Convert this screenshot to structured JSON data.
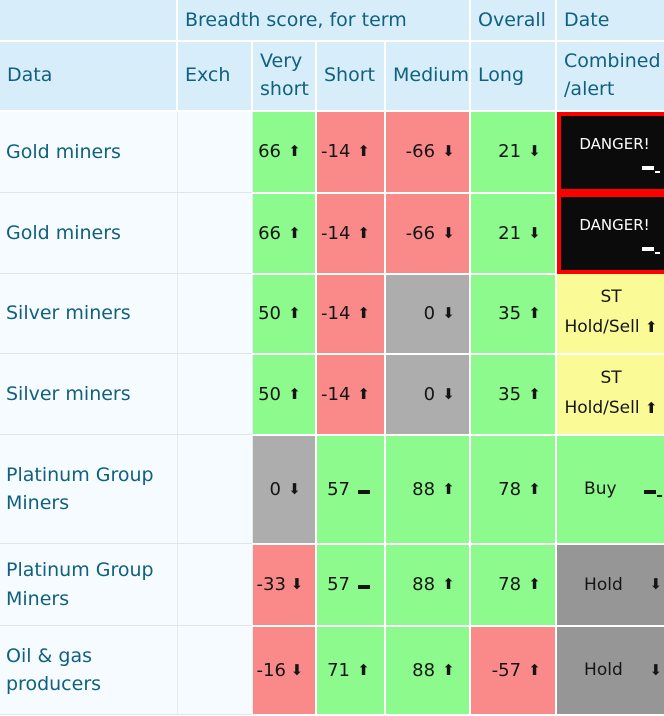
{
  "colors": {
    "header_bg": "#D7EEFA",
    "header_text": "#10607F",
    "row_bg": "#F5FBFE",
    "score_green": "#8DFA8D",
    "score_red": "#FA8A8A",
    "score_gray": "#ADADAD",
    "hold_gray": "#969696",
    "alert_yellow": "#FAFA96",
    "danger_bg": "#0B0B0B",
    "danger_border": "#FE0000",
    "danger_text": "#FFFFFF"
  },
  "header": {
    "group_label": "Breadth score, for term",
    "overall_label": "Overall",
    "date_label": "Date",
    "columns": {
      "data": "Data",
      "exch": "Exch",
      "very_short": "Very short",
      "short": "Short",
      "medium": "Medium",
      "long": "Long",
      "combined": "Combined /alert"
    }
  },
  "rows": [
    {
      "name": "Gold miners",
      "exch": "",
      "scores": [
        {
          "value": "66",
          "trend": "up",
          "tone": "green"
        },
        {
          "value": "-14",
          "trend": "up",
          "tone": "red"
        },
        {
          "value": "-66",
          "trend": "down",
          "tone": "red"
        },
        {
          "value": "21",
          "trend": "down",
          "tone": "green"
        }
      ],
      "combined": {
        "kind": "danger",
        "label": "DANGER!",
        "icon": "dashes",
        "tone": "danger"
      }
    },
    {
      "name": "Gold miners",
      "exch": "",
      "scores": [
        {
          "value": "66",
          "trend": "up",
          "tone": "green"
        },
        {
          "value": "-14",
          "trend": "up",
          "tone": "red"
        },
        {
          "value": "-66",
          "trend": "down",
          "tone": "red"
        },
        {
          "value": "21",
          "trend": "down",
          "tone": "green"
        }
      ],
      "combined": {
        "kind": "danger",
        "label": "DANGER!",
        "icon": "dashes",
        "tone": "danger"
      }
    },
    {
      "name": "Silver miners",
      "exch": "",
      "scores": [
        {
          "value": "50",
          "trend": "up",
          "tone": "green"
        },
        {
          "value": "-14",
          "trend": "up",
          "tone": "red"
        },
        {
          "value": "0",
          "trend": "down",
          "tone": "gray"
        },
        {
          "value": "35",
          "trend": "up",
          "tone": "green"
        }
      ],
      "combined": {
        "kind": "twoline",
        "line1": "ST",
        "line2": "Hold/Sell",
        "icon": "up",
        "tone": "yellow"
      }
    },
    {
      "name": "Silver miners",
      "exch": "",
      "scores": [
        {
          "value": "50",
          "trend": "up",
          "tone": "green"
        },
        {
          "value": "-14",
          "trend": "up",
          "tone": "red"
        },
        {
          "value": "0",
          "trend": "down",
          "tone": "gray"
        },
        {
          "value": "35",
          "trend": "up",
          "tone": "green"
        }
      ],
      "combined": {
        "kind": "twoline",
        "line1": "ST",
        "line2": "Hold/Sell",
        "icon": "up",
        "tone": "yellow"
      }
    },
    {
      "name": "Platinum Group Miners",
      "exch": "",
      "scores": [
        {
          "value": "0",
          "trend": "down",
          "tone": "gray"
        },
        {
          "value": "57",
          "trend": "flat",
          "tone": "green"
        },
        {
          "value": "88",
          "trend": "up",
          "tone": "green"
        },
        {
          "value": "78",
          "trend": "up",
          "tone": "green"
        }
      ],
      "combined": {
        "kind": "split",
        "label": "Buy",
        "icon": "dashes",
        "tone": "green"
      }
    },
    {
      "name": "Platinum Group Miners",
      "exch": "",
      "scores": [
        {
          "value": "-33",
          "trend": "down",
          "tone": "red"
        },
        {
          "value": "57",
          "trend": "flat",
          "tone": "green"
        },
        {
          "value": "88",
          "trend": "up",
          "tone": "green"
        },
        {
          "value": "78",
          "trend": "up",
          "tone": "green"
        }
      ],
      "combined": {
        "kind": "split",
        "label": "Hold",
        "icon": "down",
        "tone": "grayd"
      }
    },
    {
      "name": "Oil & gas producers",
      "exch": "",
      "scores": [
        {
          "value": "-16",
          "trend": "down",
          "tone": "red"
        },
        {
          "value": "71",
          "trend": "up",
          "tone": "green"
        },
        {
          "value": "88",
          "trend": "up",
          "tone": "green"
        },
        {
          "value": "-57",
          "trend": "up",
          "tone": "red"
        }
      ],
      "combined": {
        "kind": "split",
        "label": "Hold",
        "icon": "down",
        "tone": "grayd"
      }
    }
  ]
}
